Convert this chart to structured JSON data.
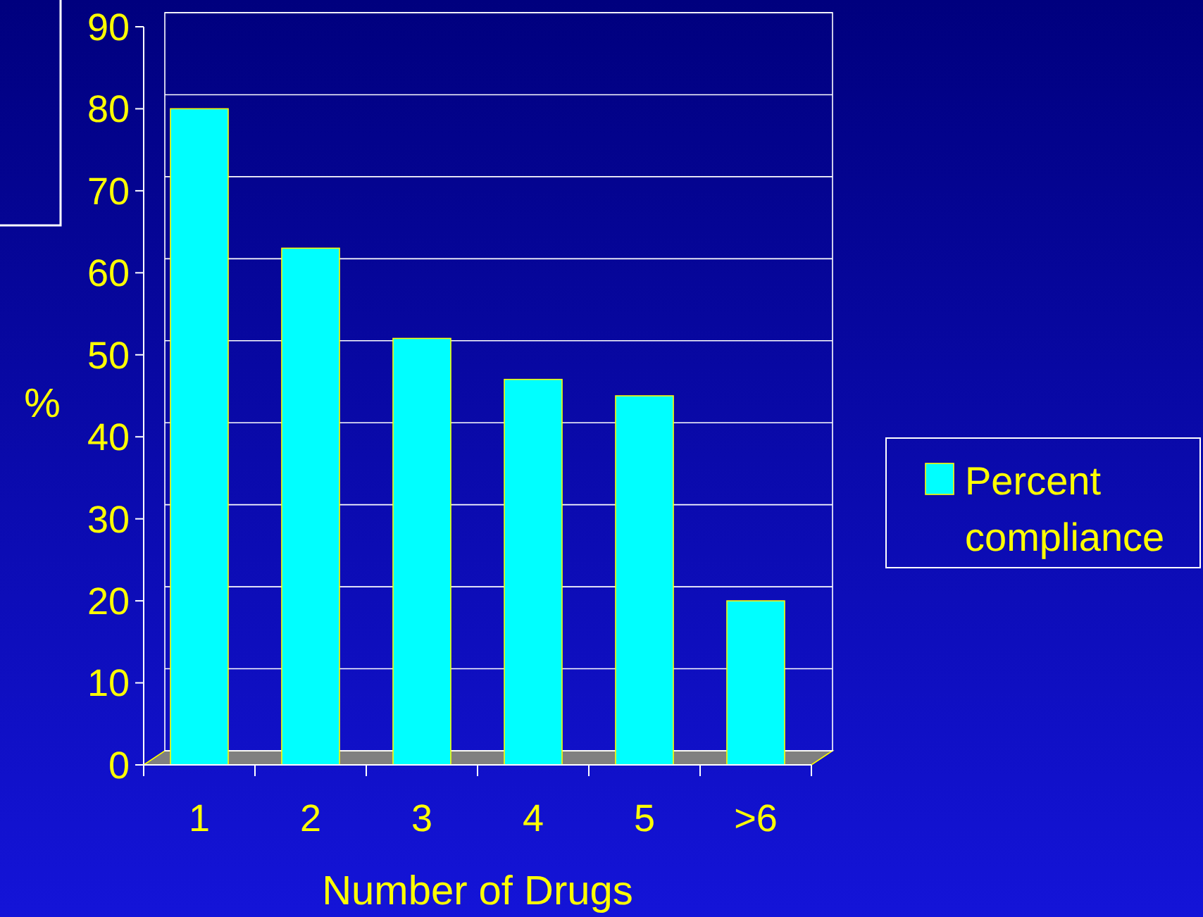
{
  "chart_data": {
    "type": "bar",
    "xlabel": "Number of Drugs",
    "ylabel": "%",
    "categories": [
      "1",
      "2",
      "3",
      "4",
      "5",
      ">6"
    ],
    "series": [
      {
        "name": "Percent compliance",
        "color": "#00ffff",
        "values": [
          80,
          63,
          52,
          47,
          45,
          20
        ]
      }
    ],
    "ylim": [
      0,
      90
    ],
    "yticks": [
      0,
      10,
      20,
      30,
      40,
      50,
      60,
      70,
      80,
      90
    ],
    "grid": "y",
    "legend": "right"
  }
}
